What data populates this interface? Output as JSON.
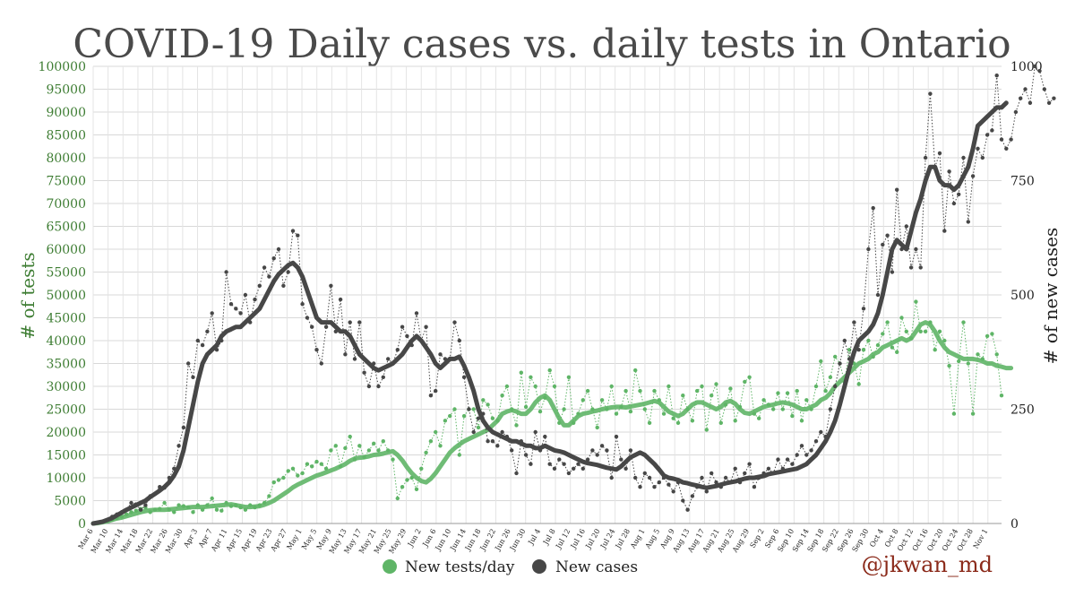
{
  "chart_data": {
    "type": "line",
    "title": "COVID-19 Daily cases vs. daily tests in Ontario",
    "ylabel_left": "# of tests",
    "ylabel_right": "# of new cases",
    "ylim_left": [
      0,
      100000
    ],
    "ylim_right": [
      0,
      1000
    ],
    "yticks_left": [
      "0",
      "5000",
      "10000",
      "15000",
      "20000",
      "25000",
      "30000",
      "35000",
      "40000",
      "45000",
      "50000",
      "55000",
      "60000",
      "65000",
      "70000",
      "75000",
      "80000",
      "85000",
      "90000",
      "95000",
      "100000"
    ],
    "yticks_right": [
      "0",
      "250",
      "500",
      "750",
      "1000"
    ],
    "x_tick_labels": [
      "Mar 6",
      "Mar 10",
      "Mar 14",
      "Mar 18",
      "Mar 22",
      "Mar 26",
      "Mar 30",
      "Apr 3",
      "Apr 7",
      "Apr 11",
      "Apr 15",
      "Apr 19",
      "Apr 23",
      "Apr 27",
      "May 1",
      "May 5",
      "May 9",
      "May 13",
      "May 17",
      "May 21",
      "May 25",
      "May 29",
      "Jun 2",
      "Jun 6",
      "Jun 10",
      "Jun 14",
      "Jun 18",
      "Jun 22",
      "Jun 26",
      "Jun 30",
      "Jul 4",
      "Jul 8",
      "Jul 12",
      "Jul 16",
      "Jul 20",
      "Jul 24",
      "Jul 28",
      "Aug 1",
      "Aug 5",
      "Aug 9",
      "Aug 13",
      "Aug 17",
      "Aug 21",
      "Aug 25",
      "Aug 29",
      "Sep 2",
      "Sep 6",
      "Sep 10",
      "Sep 14",
      "Sep 18",
      "Sep 22",
      "Sep 26",
      "Sep 30",
      "Oct 4",
      "Oct 8",
      "Oct 12",
      "Oct 16",
      "Oct 20",
      "Oct 24",
      "Oct 28",
      "Nov 1"
    ],
    "grid": true,
    "legend_position": "bottom-center",
    "series": [
      {
        "name": "New tests/day",
        "axis": "left",
        "color": "#5fb567",
        "daily": [
          0,
          200,
          400,
          600,
          800,
          1200,
          1500,
          2000,
          2500,
          2800,
          3200,
          3500,
          2500,
          3000,
          3200,
          4500,
          3000,
          2500,
          4000,
          3800,
          3500,
          2500,
          4000,
          3000,
          4000,
          5500,
          3000,
          2800,
          4500,
          3800,
          4000,
          3500,
          3000,
          4000,
          3500,
          4000,
          4500,
          6000,
          9000,
          9500,
          10000,
          11500,
          12000,
          10500,
          11000,
          13000,
          12500,
          13500,
          13000,
          12000,
          16000,
          17000,
          12500,
          16500,
          19000,
          14000,
          17000,
          14500,
          16000,
          17500,
          16000,
          18000,
          16000,
          14000,
          5500,
          8000,
          9500,
          10000,
          7500,
          12000,
          15500,
          18000,
          20000,
          17000,
          22500,
          23500,
          25000,
          15000,
          23500,
          25000,
          25000,
          21000,
          27000,
          26000,
          23000,
          22500,
          28000,
          30000,
          25000,
          21500,
          33000,
          25500,
          32000,
          30000,
          24500,
          27500,
          33500,
          30000,
          22000,
          25000,
          32000,
          22000,
          24000,
          27000,
          29000,
          25000,
          21000,
          27000,
          25000,
          30000,
          24000,
          25500,
          29000,
          24500,
          33500,
          29000,
          25000,
          22000,
          29000,
          27000,
          24000,
          30000,
          23000,
          22000,
          28000,
          25000,
          22500,
          29000,
          30000,
          20500,
          28000,
          30500,
          22000,
          26000,
          29500,
          22500,
          25500,
          31000,
          32000,
          24000,
          23000,
          27000,
          26000,
          25000,
          28500,
          25000,
          28500,
          23500,
          29000,
          22500,
          27000,
          25000,
          30000,
          35500,
          29000,
          32000,
          36500,
          35000,
          31000,
          38000,
          35000,
          30500,
          38000,
          40000,
          36500,
          39000,
          41500,
          44000,
          38500,
          37500,
          45000,
          42000,
          40500,
          48500,
          42000,
          42000,
          44000,
          38000,
          42000,
          40000,
          34500,
          24000,
          35500,
          44000,
          35000,
          24000,
          37000,
          36000,
          41000,
          41500,
          37000,
          28000
        ],
        "avg": [
          0,
          100,
          300,
          500,
          800,
          1100,
          1300,
          1600,
          1900,
          2200,
          2500,
          2700,
          2900,
          3000,
          3000,
          3000,
          3100,
          3200,
          3300,
          3400,
          3500,
          3600,
          3600,
          3600,
          3700,
          3800,
          3900,
          4000,
          4100,
          4200,
          4000,
          3800,
          3600,
          3600,
          3700,
          3800,
          4100,
          4500,
          5000,
          5700,
          6400,
          7100,
          7900,
          8500,
          9000,
          9500,
          10000,
          10500,
          10800,
          11200,
          11600,
          12000,
          12500,
          13000,
          13700,
          14200,
          14400,
          14500,
          14700,
          15000,
          15100,
          15300,
          15600,
          15800,
          15000,
          13800,
          12300,
          11000,
          10000,
          9300,
          9000,
          9800,
          11000,
          12500,
          14000,
          15500,
          16500,
          17300,
          18000,
          18500,
          19000,
          19500,
          20000,
          20500,
          21500,
          22500,
          24000,
          24500,
          24800,
          24500,
          24000,
          24000,
          25000,
          26500,
          27500,
          28000,
          27000,
          25000,
          23000,
          21500,
          21500,
          22500,
          23500,
          24000,
          24200,
          24500,
          24700,
          25000,
          25200,
          25400,
          25500,
          25500,
          25400,
          25600,
          25800,
          26000,
          26200,
          26500,
          26800,
          26500,
          25500,
          24500,
          24000,
          23500,
          24000,
          25000,
          26000,
          26500,
          26500,
          26000,
          25500,
          25000,
          25500,
          26500,
          26800,
          26200,
          25000,
          24200,
          24000,
          24500,
          25000,
          25500,
          25800,
          26000,
          26300,
          26500,
          26300,
          26000,
          25500,
          25000,
          25000,
          25500,
          26000,
          27000,
          27500,
          28500,
          30000,
          31000,
          32000,
          33000,
          34000,
          35000,
          35500,
          36000,
          37000,
          37500,
          38500,
          39000,
          39500,
          40000,
          40500,
          40000,
          40500,
          42000,
          43500,
          44000,
          43500,
          42000,
          40000,
          38500,
          37500,
          37000,
          36500,
          36000,
          36000,
          36000,
          35800,
          35500,
          35000,
          35000,
          34500,
          34300,
          34000,
          34000
        ]
      },
      {
        "name": "New cases",
        "axis": "right",
        "color": "#474747",
        "daily": [
          0,
          2,
          4,
          8,
          15,
          20,
          25,
          30,
          45,
          42,
          30,
          40,
          60,
          65,
          80,
          78,
          100,
          120,
          170,
          210,
          350,
          320,
          400,
          390,
          420,
          460,
          380,
          400,
          550,
          480,
          470,
          460,
          500,
          440,
          490,
          520,
          560,
          540,
          580,
          600,
          520,
          550,
          640,
          630,
          480,
          450,
          430,
          380,
          350,
          430,
          520,
          420,
          490,
          370,
          440,
          360,
          440,
          330,
          300,
          350,
          300,
          320,
          360,
          350,
          380,
          430,
          410,
          390,
          460,
          400,
          430,
          280,
          290,
          370,
          360,
          360,
          440,
          400,
          320,
          250,
          200,
          230,
          240,
          180,
          180,
          170,
          200,
          190,
          160,
          110,
          180,
          150,
          130,
          200,
          160,
          190,
          130,
          120,
          140,
          130,
          110,
          120,
          130,
          120,
          140,
          160,
          150,
          170,
          160,
          100,
          190,
          140,
          120,
          160,
          100,
          80,
          110,
          100,
          80,
          90,
          100,
          85,
          70,
          90,
          50,
          30,
          60,
          80,
          100,
          70,
          110,
          90,
          80,
          100,
          90,
          120,
          90,
          110,
          130,
          80,
          100,
          110,
          120,
          110,
          140,
          120,
          140,
          130,
          150,
          170,
          150,
          160,
          180,
          200,
          190,
          250,
          300,
          350,
          400,
          360,
          440,
          380,
          470,
          600,
          690,
          500,
          610,
          630,
          550,
          730,
          600,
          650,
          560,
          600,
          560,
          800,
          940,
          780,
          810,
          640,
          770,
          700,
          720,
          800,
          660,
          760,
          820,
          800,
          850,
          860,
          980,
          840,
          820,
          840,
          900,
          930,
          950,
          920,
          1000,
          990,
          950,
          920,
          930
        ],
        "avg": [
          0,
          2,
          4,
          8,
          12,
          18,
          24,
          30,
          35,
          40,
          45,
          50,
          58,
          65,
          72,
          80,
          90,
          105,
          125,
          160,
          210,
          260,
          310,
          350,
          370,
          380,
          390,
          410,
          420,
          425,
          430,
          430,
          440,
          450,
          460,
          470,
          490,
          510,
          530,
          545,
          555,
          565,
          570,
          560,
          540,
          510,
          480,
          450,
          440,
          440,
          440,
          430,
          420,
          420,
          410,
          390,
          370,
          360,
          350,
          340,
          335,
          340,
          345,
          350,
          360,
          370,
          385,
          400,
          410,
          400,
          385,
          370,
          350,
          340,
          350,
          360,
          360,
          365,
          345,
          320,
          290,
          250,
          225,
          210,
          200,
          195,
          190,
          185,
          180,
          180,
          175,
          170,
          170,
          165,
          165,
          170,
          165,
          160,
          158,
          155,
          150,
          145,
          140,
          135,
          132,
          130,
          128,
          125,
          122,
          120,
          118,
          125,
          135,
          145,
          150,
          155,
          150,
          140,
          130,
          118,
          105,
          100,
          98,
          95,
          90,
          88,
          85,
          83,
          80,
          78,
          80,
          82,
          85,
          88,
          90,
          92,
          95,
          98,
          100,
          100,
          102,
          104,
          108,
          110,
          112,
          114,
          116,
          118,
          120,
          125,
          130,
          140,
          150,
          165,
          180,
          200,
          225,
          260,
          300,
          340,
          375,
          400,
          410,
          420,
          435,
          460,
          500,
          550,
          600,
          620,
          610,
          600,
          640,
          680,
          710,
          750,
          780,
          780,
          750,
          740,
          740,
          730,
          740,
          760,
          780,
          820,
          870,
          880,
          890,
          900,
          910,
          910,
          920
        ]
      }
    ]
  },
  "legend": {
    "items": [
      {
        "label": "New tests/day",
        "color": "#5fb567"
      },
      {
        "label": "New cases",
        "color": "#474747"
      }
    ]
  },
  "watermark": "@jkwan_md"
}
